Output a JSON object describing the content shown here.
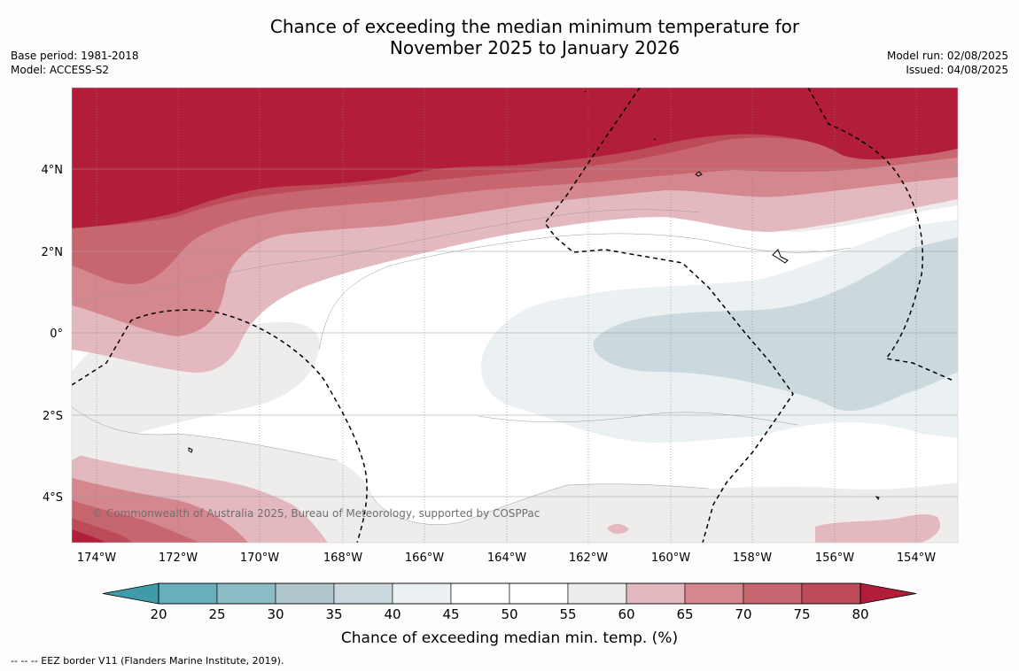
{
  "title": {
    "line1": "Chance of exceeding the median minimum temperature for",
    "line2": "November 2025 to January 2026"
  },
  "meta_left": {
    "base_period": "Base period: 1981-2018",
    "model": "Model: ACCESS-S2"
  },
  "meta_right": {
    "model_run": "Model run: 02/08/2025",
    "issued": "Issued: 04/08/2025"
  },
  "map": {
    "lon_labels": [
      "174°W",
      "172°W",
      "170°W",
      "168°W",
      "166°W",
      "164°W",
      "162°W",
      "160°W",
      "158°W",
      "156°W",
      "154°W"
    ],
    "lat_labels": [
      "4°N",
      "2°N",
      "0°",
      "2°S",
      "4°S"
    ],
    "copyright": "© Commonwealth of Australia 2025, Bureau of Meteorology, supported by COSPPac"
  },
  "colorbar": {
    "ticks": [
      "20",
      "25",
      "30",
      "35",
      "40",
      "45",
      "50",
      "55",
      "60",
      "65",
      "70",
      "75",
      "80"
    ],
    "colors": [
      "#3f9aaa",
      "#6aaebd",
      "#8cbcc6",
      "#aec6cc",
      "#cbd9de",
      "#ebf1f3",
      "#ffffff",
      "#ffffff",
      "#efedeb",
      "#e3b8be",
      "#d5878f",
      "#c86670",
      "#bc4a57",
      "#b21e3a"
    ],
    "label": "Chance of exceeding median min. temp. (%)"
  },
  "footer": "--  --  -- EEZ border V11 (Flanders Marine Institute, 2019)."
}
